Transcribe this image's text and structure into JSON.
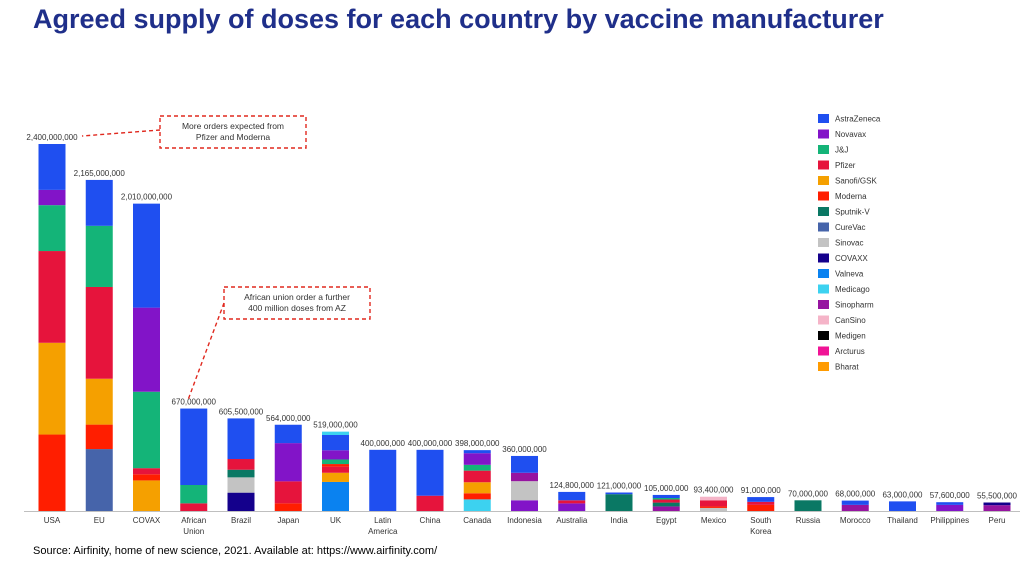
{
  "title": "Agreed supply of doses for each country by vaccine manufacturer",
  "source": "Source: Airfinity, home of new science, 2021. Available at: https://www.airfinity.com/",
  "colors": {
    "AstraZeneca": "#1f4ff0",
    "Novavax": "#8214c8",
    "J&J": "#14b478",
    "Pfizer": "#e6143c",
    "Sanofi/GSK": "#f5a000",
    "Moderna": "#ff1e00",
    "Sputnik-V": "#0a7864",
    "CureVac": "#4664aa",
    "Sinovac": "#c3c3c3",
    "COVAXX": "#14008c",
    "Valneva": "#0a82f0",
    "Medicago": "#3cd2f0",
    "Sinopharm": "#9614a0",
    "CanSino": "#f5b4c8",
    "Medigen": "#000000",
    "Arcturus": "#f01496",
    "Bharat": "#ff9b00"
  },
  "chart_data": {
    "type": "bar",
    "stacked": true,
    "title": "Agreed supply of doses for each country by vaccine manufacturer",
    "legend_position": "right",
    "ylim": [
      0,
      2400000000
    ],
    "legend": [
      "AstraZeneca",
      "Novavax",
      "J&J",
      "Pfizer",
      "Sanofi/GSK",
      "Moderna",
      "Sputnik-V",
      "CureVac",
      "Sinovac",
      "COVAXX",
      "Valneva",
      "Medicago",
      "Sinopharm",
      "CanSino",
      "Medigen",
      "Arcturus",
      "Bharat"
    ],
    "categories": [
      "USA",
      "EU",
      "COVAX",
      "African Union",
      "Brazil",
      "Japan",
      "UK",
      "Latin America",
      "China",
      "Canada",
      "Indonesia",
      "Australia",
      "India",
      "Egypt",
      "Mexico",
      "South Korea",
      "Russia",
      "Morocco",
      "Thailand",
      "Philippines",
      "Peru"
    ],
    "totals": [
      "2,400,000,000",
      "2,165,000,000",
      "2,010,000,000",
      "670,000,000",
      "605,500,000",
      "564,000,000",
      "519,000,000",
      "400,000,000",
      "400,000,000",
      "398,000,000",
      "360,000,000",
      "124,800,000",
      "121,000,000",
      "105,000,000",
      "93,400,000",
      "91,000,000",
      "70,000,000",
      "68,000,000",
      "63,000,000",
      "57,600,000",
      "55,500,000"
    ],
    "stacks": [
      [
        [
          "Moderna",
          500000000
        ],
        [
          "Sanofi/GSK",
          600000000
        ],
        [
          "Pfizer",
          600000000
        ],
        [
          "J&J",
          300000000
        ],
        [
          "Novavax",
          100000000
        ],
        [
          "AstraZeneca",
          300000000
        ]
      ],
      [
        [
          "CureVac",
          405000000
        ],
        [
          "Moderna",
          160000000
        ],
        [
          "Sanofi/GSK",
          300000000
        ],
        [
          "Pfizer",
          600000000
        ],
        [
          "J&J",
          400000000
        ],
        [
          "AstraZeneca",
          300000000
        ]
      ],
      [
        [
          "Sanofi/GSK",
          200000000
        ],
        [
          "Moderna",
          40000000
        ],
        [
          "Pfizer",
          40000000
        ],
        [
          "J&J",
          500000000
        ],
        [
          "Novavax",
          550000000
        ],
        [
          "AstraZeneca",
          680000000
        ]
      ],
      [
        [
          "Pfizer",
          50000000
        ],
        [
          "J&J",
          120000000
        ],
        [
          "AstraZeneca",
          500000000
        ]
      ],
      [
        [
          "COVAXX",
          120000000
        ],
        [
          "Sinovac",
          100000000
        ],
        [
          "Sputnik-V",
          50000000
        ],
        [
          "Pfizer",
          70000000
        ],
        [
          "AstraZeneca",
          265500000
        ]
      ],
      [
        [
          "Moderna",
          50000000
        ],
        [
          "Pfizer",
          144000000
        ],
        [
          "Novavax",
          250000000
        ],
        [
          "AstraZeneca",
          120000000
        ]
      ],
      [
        [
          "Valneva",
          190000000
        ],
        [
          "Sanofi/GSK",
          60000000
        ],
        [
          "Pfizer",
          40000000
        ],
        [
          "Moderna",
          17000000
        ],
        [
          "J&J",
          30000000
        ],
        [
          "Novavax",
          60000000
        ],
        [
          "AstraZeneca",
          100000000
        ],
        [
          "Medicago",
          22000000
        ]
      ],
      [
        [
          "AstraZeneca",
          400000000
        ]
      ],
      [
        [
          "Pfizer",
          100000000
        ],
        [
          "AstraZeneca",
          300000000
        ]
      ],
      [
        [
          "Medicago",
          76000000
        ],
        [
          "Moderna",
          40000000
        ],
        [
          "Sanofi/GSK",
          72000000
        ],
        [
          "Pfizer",
          76000000
        ],
        [
          "J&J",
          38000000
        ],
        [
          "Novavax",
          76000000
        ],
        [
          "AstraZeneca",
          20000000
        ]
      ],
      [
        [
          "Novavax",
          70000000
        ],
        [
          "Sinovac",
          125000000
        ],
        [
          "Sinopharm",
          55000000
        ],
        [
          "AstraZeneca",
          110000000
        ]
      ],
      [
        [
          "Novavax",
          50000000
        ],
        [
          "Pfizer",
          20000000
        ],
        [
          "AstraZeneca",
          54800000
        ]
      ],
      [
        [
          "Sputnik-V",
          110000000
        ],
        [
          "AstraZeneca",
          11000000
        ]
      ],
      [
        [
          "Sinopharm",
          30000000
        ],
        [
          "Sputnik-V",
          25000000
        ],
        [
          "Pfizer",
          20000000
        ],
        [
          "J&J",
          10000000
        ],
        [
          "AstraZeneca",
          20000000
        ]
      ],
      [
        [
          "Sinovac",
          20000000
        ],
        [
          "Moderna",
          10000000
        ],
        [
          "Pfizer",
          40000000
        ],
        [
          "CanSino",
          23400000
        ]
      ],
      [
        [
          "Moderna",
          40000000
        ],
        [
          "Pfizer",
          20000000
        ],
        [
          "AstraZeneca",
          31000000
        ]
      ],
      [
        [
          "Sputnik-V",
          70000000
        ]
      ],
      [
        [
          "Sinopharm",
          40000000
        ],
        [
          "AstraZeneca",
          28000000
        ]
      ],
      [
        [
          "AstraZeneca",
          63000000
        ]
      ],
      [
        [
          "Novavax",
          40000000
        ],
        [
          "AstraZeneca",
          17600000
        ]
      ],
      [
        [
          "Sinopharm",
          38000000
        ],
        [
          "COVAXX",
          17500000
        ]
      ]
    ],
    "annotations": [
      {
        "text": [
          "More orders expected from",
          "Pfizer and Moderna"
        ],
        "points_to": "USA"
      },
      {
        "text": [
          "African union order a further",
          "400 million doses from AZ"
        ],
        "points_to": "African Union"
      }
    ]
  }
}
